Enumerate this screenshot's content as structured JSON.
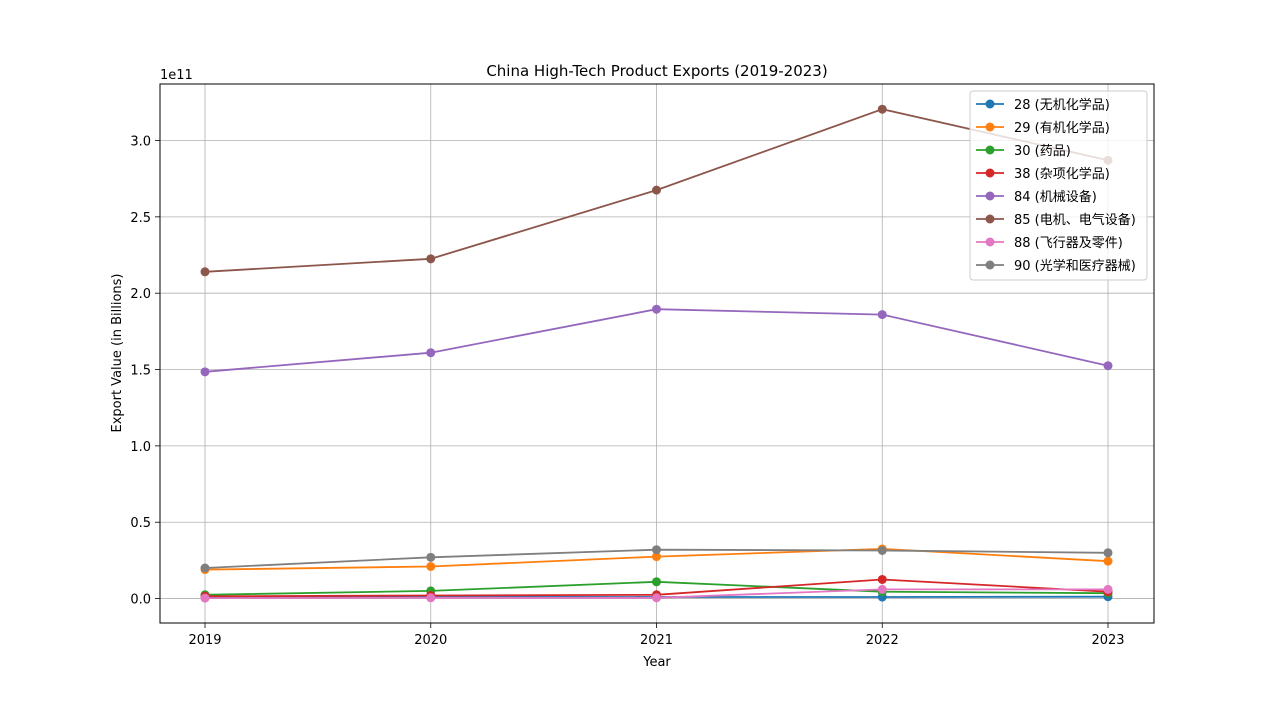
{
  "chart_data": {
    "type": "line",
    "title": "China High-Tech Product Exports (2019-2023)",
    "xlabel": "Year",
    "ylabel": "Export Value (in Billions)",
    "y_offset_label": "1e11",
    "x": [
      "2019",
      "2020",
      "2021",
      "2022",
      "2023"
    ],
    "yticks": [
      0.0,
      0.5,
      1.0,
      1.5,
      2.0,
      2.5,
      3.0
    ],
    "ytick_labels": [
      "0.0",
      "0.5",
      "1.0",
      "1.5",
      "2.0",
      "2.5",
      "3.0"
    ],
    "ylim": [
      -0.16,
      3.37
    ],
    "grid": true,
    "legend_position": "top-right",
    "series": [
      {
        "name": "28 (无机化学品)",
        "color": "#1f77b4",
        "values": [
          0.012,
          0.013,
          0.01,
          0.01,
          0.012
        ]
      },
      {
        "name": "29 (有机化学品)",
        "color": "#ff7f0e",
        "values": [
          0.19,
          0.21,
          0.275,
          0.325,
          0.245
        ]
      },
      {
        "name": "30 (药品)",
        "color": "#2ca02c",
        "values": [
          0.025,
          0.05,
          0.11,
          0.045,
          0.035
        ]
      },
      {
        "name": "38 (杂项化学品)",
        "color": "#d62728",
        "values": [
          0.015,
          0.02,
          0.025,
          0.125,
          0.045
        ]
      },
      {
        "name": "84 (机械设备)",
        "color": "#9467bd",
        "values": [
          1.485,
          1.61,
          1.895,
          1.86,
          1.525
        ]
      },
      {
        "name": "85 (电机、电气设备)",
        "color": "#8c564b",
        "values": [
          2.14,
          2.225,
          2.675,
          3.205,
          2.87
        ]
      },
      {
        "name": "88 (飞行器及零件)",
        "color": "#e377c2",
        "values": [
          0.003,
          0.005,
          0.005,
          0.06,
          0.06
        ]
      },
      {
        "name": "90 (光学和医疗器械)",
        "color": "#7f7f7f",
        "values": [
          0.2,
          0.27,
          0.32,
          0.315,
          0.3
        ]
      }
    ]
  }
}
